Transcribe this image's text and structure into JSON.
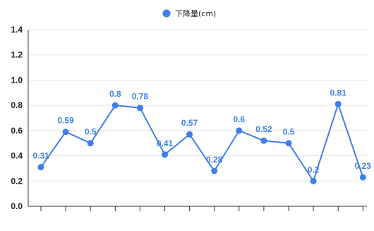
{
  "chart_data": {
    "type": "line",
    "title": "",
    "xlabel": "",
    "ylabel": "",
    "ylim": [
      0,
      1.4
    ],
    "yticks": [
      "0.0",
      "0.2",
      "0.4",
      "0.6",
      "0.8",
      "1.0",
      "1.2",
      "1.4"
    ],
    "grid": true,
    "legend_position": "top-center",
    "series": [
      {
        "name": "下降量(cm)",
        "color": "#3f7fe8",
        "values": [
          0.31,
          0.59,
          0.5,
          0.8,
          0.78,
          0.41,
          0.57,
          0.28,
          0.6,
          0.52,
          0.5,
          0.2,
          0.81,
          0.23
        ]
      }
    ]
  }
}
